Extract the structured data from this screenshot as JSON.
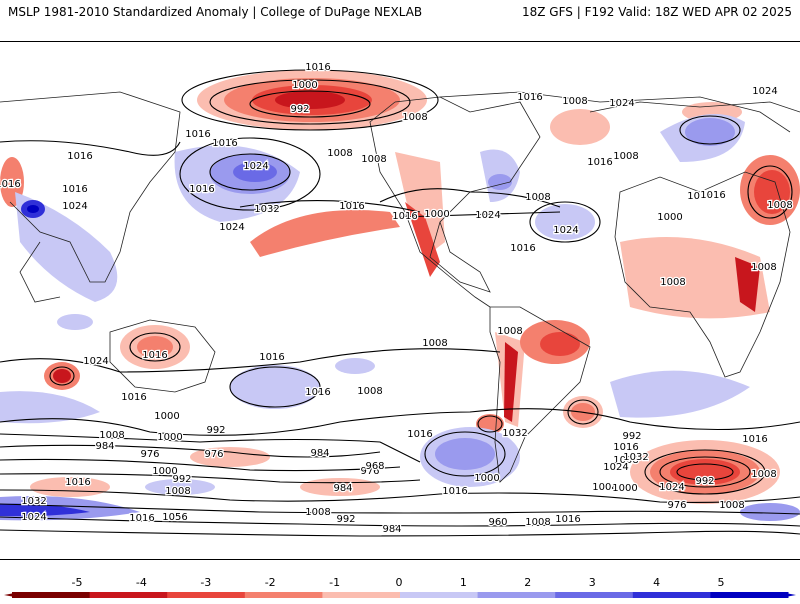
{
  "header": {
    "left": "MSLP 1981-2010 Standardized Anomaly | College of DuPage NEXLAB",
    "right": "18Z GFS | F192 Valid: 18Z WED APR 02 2025"
  },
  "colors": {
    "neg5": "#7a0000",
    "neg4": "#c8161d",
    "neg3": "#e8453c",
    "neg2": "#f4806e",
    "neg1": "#fbbdb0",
    "zero": "#ffffff",
    "pos1": "#c8c8f5",
    "pos2": "#9a9aee",
    "pos3": "#6a6ae6",
    "pos4": "#3030d8",
    "pos5": "#0000c0"
  },
  "colorbar": {
    "ticks": [
      "-5",
      "-4",
      "-3",
      "-2",
      "-1",
      "0",
      "1",
      "2",
      "3",
      "4",
      "5"
    ]
  },
  "isobar_labels": [
    "1016",
    "1000",
    "992",
    "1008",
    "1016",
    "1008",
    "1024",
    "1024",
    "1016",
    "1016",
    "1016",
    "1024",
    "1016",
    "1032",
    "1024",
    "1008",
    "1008",
    "1016",
    "1016",
    "1000",
    "1024",
    "1008",
    "1024",
    "1016",
    "1008",
    "1016",
    "1008",
    "1000",
    "1008",
    "1008",
    "1016",
    "1016",
    "1008",
    "1016",
    "1016",
    "1024",
    "1024",
    "1016",
    "1016",
    "1008",
    "1008",
    "1016",
    "1016",
    "1016",
    "1000",
    "992",
    "1008",
    "1000",
    "984",
    "976",
    "976",
    "992",
    "984",
    "1000",
    "1008",
    "1032",
    "1024",
    "1056",
    "1016",
    "984",
    "976",
    "968",
    "992",
    "1016",
    "1008",
    "1032",
    "1024",
    "1008",
    "1016",
    "1000",
    "1032",
    "1008",
    "1016",
    "1000",
    "1024",
    "992",
    "976",
    "1008",
    "1016",
    "1008",
    "992",
    "984",
    "960",
    "1008",
    "1016"
  ]
}
